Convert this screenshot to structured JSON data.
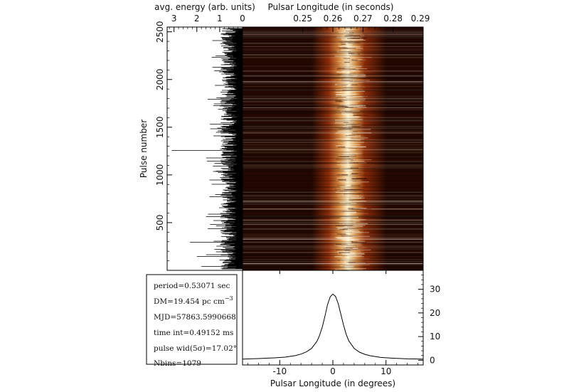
{
  "chart_data": [
    {
      "type": "heatmap",
      "title": "",
      "xlabel": "Pulsar Longitude (in seconds)",
      "ylabel": "Pulse number",
      "xlim": [
        0.23,
        0.29
      ],
      "ylim": [
        0,
        2550
      ],
      "x_ticks": [
        "0.25",
        "0.26",
        "0.27",
        "0.28",
        "0.29"
      ],
      "y_ticks": [
        "500",
        "1000",
        "1500",
        "2000",
        "2500"
      ],
      "profile_center": 0.265,
      "profile_width": 0.004,
      "colormap": [
        "#220800",
        "#8a2a07",
        "#d88a40",
        "#fff2c8"
      ]
    },
    {
      "type": "line",
      "title": "",
      "xlabel": "avg. energy (arb. units)",
      "ylabel": "Pulse number",
      "xlim": [
        3.3,
        0
      ],
      "ylim": [
        0,
        2550
      ],
      "x_ticks": [
        "3",
        "2",
        "1",
        "0"
      ],
      "typical_energy": 0.7,
      "spikes": [
        {
          "pulse": 1250,
          "energy": 3.1
        },
        {
          "pulse": 290,
          "energy": 2.3
        },
        {
          "pulse": 140,
          "energy": 2.0
        },
        {
          "pulse": 40,
          "energy": 1.8
        },
        {
          "pulse": 560,
          "energy": 1.6
        },
        {
          "pulse": 770,
          "energy": 1.45
        },
        {
          "pulse": 2230,
          "energy": 1.35
        }
      ]
    },
    {
      "type": "line",
      "title": "",
      "xlabel": "Pulsar Longitude (in degrees)",
      "ylabel": "",
      "xlim": [
        -17,
        17
      ],
      "ylim": [
        -2,
        38
      ],
      "x_ticks": [
        "-10",
        "0",
        "10"
      ],
      "y_ticks": [
        "0",
        "10",
        "20",
        "30"
      ],
      "x": [
        -17,
        -14,
        -11,
        -9,
        -7,
        -6,
        -5,
        -4,
        -3,
        -2.5,
        -2,
        -1.5,
        -1,
        -0.5,
        0,
        0.5,
        1,
        1.5,
        2,
        2.5,
        3,
        4,
        5,
        6,
        7,
        9,
        11,
        14,
        17
      ],
      "y": [
        0.5,
        0.7,
        1.0,
        1.3,
        2.0,
        2.6,
        3.5,
        5.0,
        8.0,
        10.5,
        14.0,
        18.5,
        23.5,
        26.8,
        28.0,
        27.0,
        24.0,
        19.5,
        15.0,
        11.0,
        8.2,
        5.0,
        3.4,
        2.5,
        1.9,
        1.2,
        0.9,
        0.6,
        0.5
      ]
    }
  ],
  "info_box": {
    "period": "period=0.53071 sec",
    "dm": "DM=19.454 pc cm",
    "dm_exp": "−3",
    "mjd": "MJD=57863.5990668",
    "time_int": "time int=0.49152 ms",
    "pulse_wid": "pulse wid(5σ)=17.02°",
    "nbins": "Nbins=1079"
  }
}
